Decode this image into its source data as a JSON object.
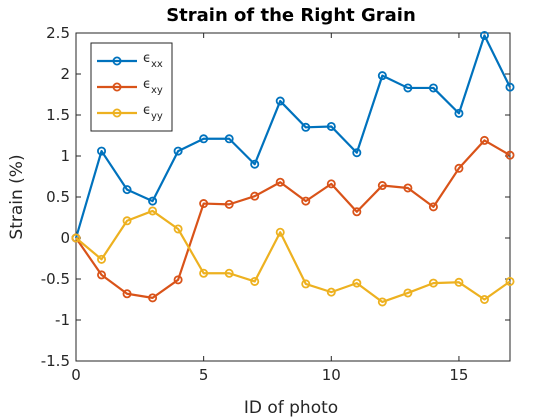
{
  "chart_data": {
    "type": "line",
    "title": "Strain of the Right Grain",
    "xlabel": "ID of photo",
    "ylabel": "Strain (%)",
    "xlim": [
      0,
      17
    ],
    "ylim": [
      -1.5,
      2.5
    ],
    "xticks": [
      0,
      5,
      10,
      15
    ],
    "yticks": [
      -1.5,
      -1,
      -0.5,
      0,
      0.5,
      1,
      1.5,
      2,
      2.5
    ],
    "x": [
      0,
      1,
      2,
      3,
      4,
      5,
      6,
      7,
      8,
      9,
      10,
      11,
      12,
      13,
      14,
      15,
      16,
      17
    ],
    "legend_position": "top-left",
    "grid": false,
    "series": [
      {
        "name": "ε_xx",
        "symbol": "ϵ",
        "subscript": "xx",
        "color": "#0072BD",
        "values": [
          0,
          1.06,
          0.59,
          0.45,
          1.06,
          1.21,
          1.21,
          0.9,
          1.67,
          1.35,
          1.36,
          1.04,
          1.98,
          1.83,
          1.83,
          1.52,
          2.47,
          1.84
        ]
      },
      {
        "name": "ε_xy",
        "symbol": "ϵ",
        "subscript": "xy",
        "color": "#D95319",
        "values": [
          0,
          -0.45,
          -0.68,
          -0.73,
          -0.51,
          0.42,
          0.41,
          0.51,
          0.68,
          0.45,
          0.66,
          0.32,
          0.64,
          0.61,
          0.38,
          0.85,
          1.19,
          1.01
        ]
      },
      {
        "name": "ε_yy",
        "symbol": "ϵ",
        "subscript": "yy",
        "color": "#EDB120",
        "values": [
          0,
          -0.26,
          0.21,
          0.33,
          0.11,
          -0.43,
          -0.43,
          -0.53,
          0.07,
          -0.56,
          -0.66,
          -0.55,
          -0.78,
          -0.67,
          -0.55,
          -0.54,
          -0.75,
          -0.53
        ]
      }
    ]
  }
}
